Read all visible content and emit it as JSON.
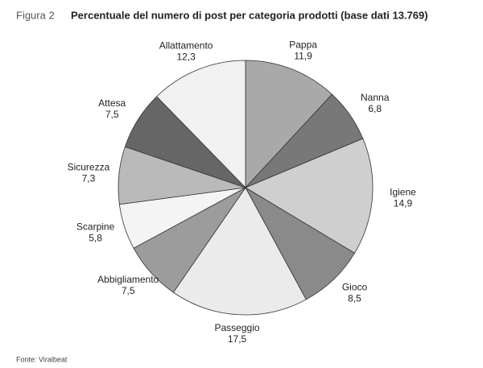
{
  "chart_data": {
    "type": "pie",
    "figure_label": "Figura 2",
    "title": "Percentuale del numero di post per categoria prodotti (base dati 13.769)",
    "source": "Fonte: Viralbeat",
    "categories": [
      "Pappa",
      "Nanna",
      "Igiene",
      "Gioco",
      "Passeggio",
      "Abbigliamento",
      "Scarpine",
      "Sicurezza",
      "Attesa",
      "Allattamento"
    ],
    "values": [
      11.9,
      6.8,
      14.9,
      8.5,
      17.5,
      7.5,
      5.8,
      7.3,
      7.5,
      12.3
    ],
    "value_labels": [
      "11,9",
      "6,8",
      "14,9",
      "8,5",
      "17,5",
      "7,5",
      "5,8",
      "7,3",
      "7,5",
      "12,3"
    ],
    "colors": [
      "#a9a9a9",
      "#787878",
      "#cfcfcf",
      "#8a8a8a",
      "#ebebeb",
      "#9c9c9c",
      "#f4f4f4",
      "#bababa",
      "#666666",
      "#f1f1f1"
    ]
  }
}
